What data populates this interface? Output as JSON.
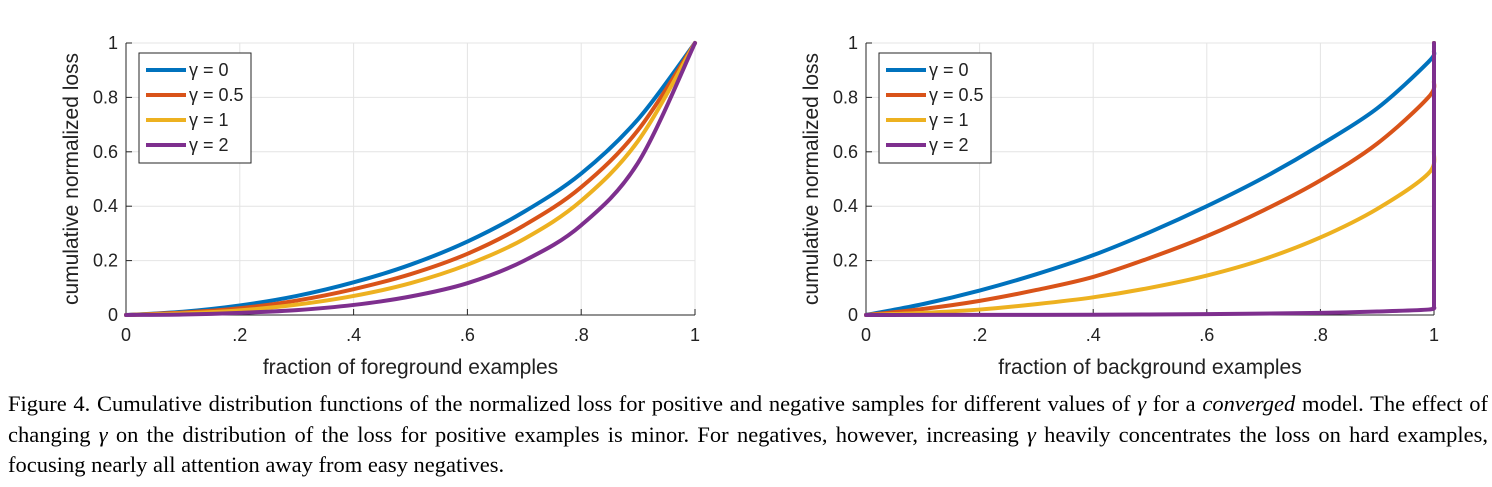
{
  "caption": {
    "p1": "Figure 4. Cumulative distribution functions of the normalized loss for positive and negative samples for different values of ",
    "gamma1": "γ",
    "p2": " for a ",
    "emph": "converged",
    "p3": " model. The effect of changing ",
    "gamma2": "γ",
    "p4": " on the distribution of the loss for positive examples is minor. For negatives, however, increasing ",
    "gamma3": "γ",
    "p5": " heavily concentrates the loss on hard examples, focusing nearly all attention away from easy negatives."
  },
  "chart_data": [
    {
      "type": "line",
      "xlabel": "fraction of foreground examples",
      "ylabel": "cumulative normalized loss",
      "xlim": [
        0,
        1
      ],
      "ylim": [
        0,
        1
      ],
      "xticks": [
        0,
        0.2,
        0.4,
        0.6,
        0.8,
        1
      ],
      "xtick_labels": [
        "0",
        ".2",
        ".4",
        ".6",
        ".8",
        "1"
      ],
      "yticks": [
        0,
        0.2,
        0.4,
        0.6,
        0.8,
        1
      ],
      "ytick_labels": [
        "0",
        "0.2",
        "0.4",
        "0.6",
        "0.8",
        "1"
      ],
      "grid": true,
      "legend_position": "top-left",
      "series": [
        {
          "name": "γ = 0",
          "color": "#0072BD",
          "x": [
            0,
            0.1,
            0.2,
            0.3,
            0.4,
            0.5,
            0.6,
            0.7,
            0.8,
            0.9,
            1
          ],
          "y": [
            0,
            0.012,
            0.035,
            0.07,
            0.12,
            0.185,
            0.27,
            0.38,
            0.52,
            0.72,
            1
          ]
        },
        {
          "name": "γ = 0.5",
          "color": "#D95319",
          "x": [
            0,
            0.1,
            0.2,
            0.3,
            0.4,
            0.5,
            0.6,
            0.7,
            0.8,
            0.9,
            1
          ],
          "y": [
            0,
            0.009,
            0.025,
            0.053,
            0.095,
            0.15,
            0.225,
            0.33,
            0.47,
            0.68,
            1
          ]
        },
        {
          "name": "γ = 1",
          "color": "#EDB120",
          "x": [
            0,
            0.1,
            0.2,
            0.3,
            0.4,
            0.5,
            0.6,
            0.7,
            0.8,
            0.9,
            1
          ],
          "y": [
            0,
            0.006,
            0.017,
            0.038,
            0.07,
            0.117,
            0.185,
            0.28,
            0.42,
            0.64,
            1
          ]
        },
        {
          "name": "γ = 2",
          "color": "#7E2F8E",
          "x": [
            0,
            0.1,
            0.2,
            0.3,
            0.4,
            0.5,
            0.6,
            0.7,
            0.8,
            0.9,
            1
          ],
          "y": [
            0,
            0.002,
            0.008,
            0.018,
            0.037,
            0.068,
            0.117,
            0.2,
            0.33,
            0.56,
            1
          ]
        }
      ]
    },
    {
      "type": "line",
      "xlabel": "fraction of background examples",
      "ylabel": "cumulative normalized loss",
      "xlim": [
        0,
        1
      ],
      "ylim": [
        0,
        1
      ],
      "xticks": [
        0,
        0.2,
        0.4,
        0.6,
        0.8,
        1
      ],
      "xtick_labels": [
        "0",
        ".2",
        ".4",
        ".6",
        ".8",
        "1"
      ],
      "yticks": [
        0,
        0.2,
        0.4,
        0.6,
        0.8,
        1
      ],
      "ytick_labels": [
        "0",
        "0.2",
        "0.4",
        "0.6",
        "0.8",
        "1"
      ],
      "grid": true,
      "legend_position": "top-left",
      "series": [
        {
          "name": "γ = 0",
          "color": "#0072BD",
          "x": [
            0,
            0.1,
            0.2,
            0.3,
            0.4,
            0.5,
            0.6,
            0.7,
            0.8,
            0.9,
            0.99,
            1,
            1
          ],
          "y": [
            0,
            0.04,
            0.09,
            0.15,
            0.22,
            0.305,
            0.4,
            0.505,
            0.625,
            0.76,
            0.93,
            0.97,
            1
          ]
        },
        {
          "name": "γ = 0.5",
          "color": "#D95319",
          "x": [
            0,
            0.1,
            0.2,
            0.3,
            0.4,
            0.5,
            0.6,
            0.7,
            0.8,
            0.9,
            0.99,
            1,
            1
          ],
          "y": [
            0,
            0.022,
            0.052,
            0.092,
            0.14,
            0.21,
            0.29,
            0.385,
            0.495,
            0.63,
            0.8,
            0.86,
            1
          ]
        },
        {
          "name": "γ = 1",
          "color": "#EDB120",
          "x": [
            0,
            0.1,
            0.2,
            0.3,
            0.4,
            0.5,
            0.6,
            0.7,
            0.8,
            0.9,
            0.99,
            1,
            1
          ],
          "y": [
            0,
            0.008,
            0.02,
            0.04,
            0.065,
            0.1,
            0.145,
            0.205,
            0.285,
            0.39,
            0.52,
            0.6,
            1
          ]
        },
        {
          "name": "γ = 2",
          "color": "#7E2F8E",
          "x": [
            0,
            0.2,
            0.4,
            0.6,
            0.8,
            0.9,
            0.99,
            1,
            1
          ],
          "y": [
            0,
            0.0005,
            0.001,
            0.003,
            0.008,
            0.013,
            0.02,
            0.03,
            1
          ]
        }
      ]
    }
  ]
}
